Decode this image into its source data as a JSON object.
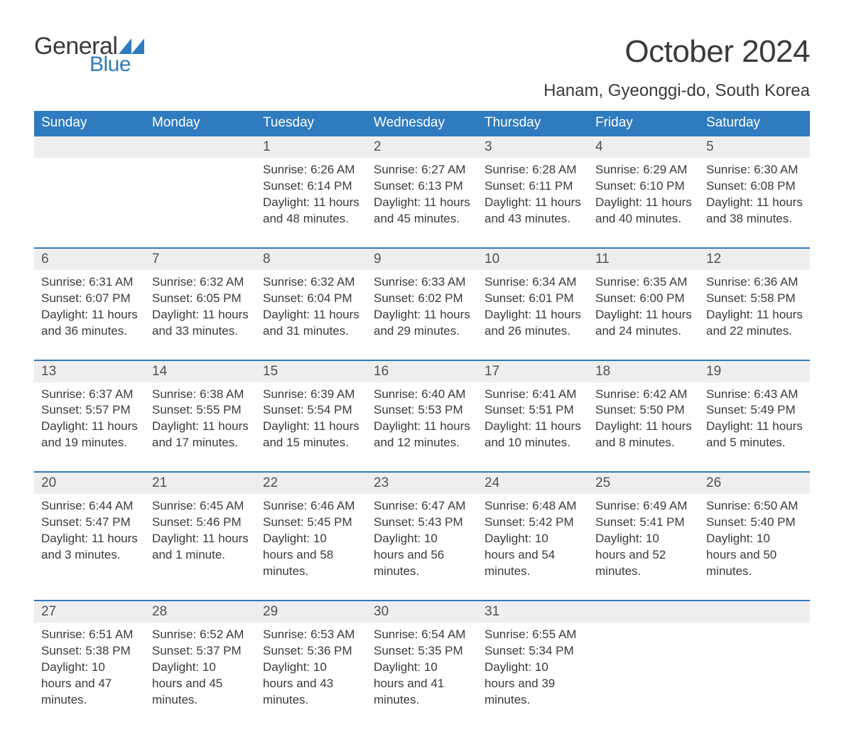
{
  "brand": {
    "word1": "General",
    "word2": "Blue",
    "text_color": "#3a3a3a",
    "accent_color": "#2f7bbf"
  },
  "title": "October 2024",
  "location": "Hanam, Gyeonggi-do, South Korea",
  "colors": {
    "header_bg": "#2f7bbf",
    "header_text": "#ffffff",
    "band_bg": "#eeeeee",
    "rule": "#2f7bbf",
    "body_text": "#3a3a3a",
    "page_bg": "#ffffff"
  },
  "typography": {
    "title_fontsize": 44,
    "location_fontsize": 24,
    "weekday_fontsize": 19,
    "daynum_fontsize": 19,
    "body_fontsize": 17
  },
  "calendar": {
    "type": "table",
    "columns": [
      "Sunday",
      "Monday",
      "Tuesday",
      "Wednesday",
      "Thursday",
      "Friday",
      "Saturday"
    ],
    "weeks": [
      [
        null,
        null,
        {
          "n": "1",
          "sunrise": "Sunrise: 6:26 AM",
          "sunset": "Sunset: 6:14 PM",
          "daylight": "Daylight: 11 hours and 48 minutes."
        },
        {
          "n": "2",
          "sunrise": "Sunrise: 6:27 AM",
          "sunset": "Sunset: 6:13 PM",
          "daylight": "Daylight: 11 hours and 45 minutes."
        },
        {
          "n": "3",
          "sunrise": "Sunrise: 6:28 AM",
          "sunset": "Sunset: 6:11 PM",
          "daylight": "Daylight: 11 hours and 43 minutes."
        },
        {
          "n": "4",
          "sunrise": "Sunrise: 6:29 AM",
          "sunset": "Sunset: 6:10 PM",
          "daylight": "Daylight: 11 hours and 40 minutes."
        },
        {
          "n": "5",
          "sunrise": "Sunrise: 6:30 AM",
          "sunset": "Sunset: 6:08 PM",
          "daylight": "Daylight: 11 hours and 38 minutes."
        }
      ],
      [
        {
          "n": "6",
          "sunrise": "Sunrise: 6:31 AM",
          "sunset": "Sunset: 6:07 PM",
          "daylight": "Daylight: 11 hours and 36 minutes."
        },
        {
          "n": "7",
          "sunrise": "Sunrise: 6:32 AM",
          "sunset": "Sunset: 6:05 PM",
          "daylight": "Daylight: 11 hours and 33 minutes."
        },
        {
          "n": "8",
          "sunrise": "Sunrise: 6:32 AM",
          "sunset": "Sunset: 6:04 PM",
          "daylight": "Daylight: 11 hours and 31 minutes."
        },
        {
          "n": "9",
          "sunrise": "Sunrise: 6:33 AM",
          "sunset": "Sunset: 6:02 PM",
          "daylight": "Daylight: 11 hours and 29 minutes."
        },
        {
          "n": "10",
          "sunrise": "Sunrise: 6:34 AM",
          "sunset": "Sunset: 6:01 PM",
          "daylight": "Daylight: 11 hours and 26 minutes."
        },
        {
          "n": "11",
          "sunrise": "Sunrise: 6:35 AM",
          "sunset": "Sunset: 6:00 PM",
          "daylight": "Daylight: 11 hours and 24 minutes."
        },
        {
          "n": "12",
          "sunrise": "Sunrise: 6:36 AM",
          "sunset": "Sunset: 5:58 PM",
          "daylight": "Daylight: 11 hours and 22 minutes."
        }
      ],
      [
        {
          "n": "13",
          "sunrise": "Sunrise: 6:37 AM",
          "sunset": "Sunset: 5:57 PM",
          "daylight": "Daylight: 11 hours and 19 minutes."
        },
        {
          "n": "14",
          "sunrise": "Sunrise: 6:38 AM",
          "sunset": "Sunset: 5:55 PM",
          "daylight": "Daylight: 11 hours and 17 minutes."
        },
        {
          "n": "15",
          "sunrise": "Sunrise: 6:39 AM",
          "sunset": "Sunset: 5:54 PM",
          "daylight": "Daylight: 11 hours and 15 minutes."
        },
        {
          "n": "16",
          "sunrise": "Sunrise: 6:40 AM",
          "sunset": "Sunset: 5:53 PM",
          "daylight": "Daylight: 11 hours and 12 minutes."
        },
        {
          "n": "17",
          "sunrise": "Sunrise: 6:41 AM",
          "sunset": "Sunset: 5:51 PM",
          "daylight": "Daylight: 11 hours and 10 minutes."
        },
        {
          "n": "18",
          "sunrise": "Sunrise: 6:42 AM",
          "sunset": "Sunset: 5:50 PM",
          "daylight": "Daylight: 11 hours and 8 minutes."
        },
        {
          "n": "19",
          "sunrise": "Sunrise: 6:43 AM",
          "sunset": "Sunset: 5:49 PM",
          "daylight": "Daylight: 11 hours and 5 minutes."
        }
      ],
      [
        {
          "n": "20",
          "sunrise": "Sunrise: 6:44 AM",
          "sunset": "Sunset: 5:47 PM",
          "daylight": "Daylight: 11 hours and 3 minutes."
        },
        {
          "n": "21",
          "sunrise": "Sunrise: 6:45 AM",
          "sunset": "Sunset: 5:46 PM",
          "daylight": "Daylight: 11 hours and 1 minute."
        },
        {
          "n": "22",
          "sunrise": "Sunrise: 6:46 AM",
          "sunset": "Sunset: 5:45 PM",
          "daylight": "Daylight: 10 hours and 58 minutes."
        },
        {
          "n": "23",
          "sunrise": "Sunrise: 6:47 AM",
          "sunset": "Sunset: 5:43 PM",
          "daylight": "Daylight: 10 hours and 56 minutes."
        },
        {
          "n": "24",
          "sunrise": "Sunrise: 6:48 AM",
          "sunset": "Sunset: 5:42 PM",
          "daylight": "Daylight: 10 hours and 54 minutes."
        },
        {
          "n": "25",
          "sunrise": "Sunrise: 6:49 AM",
          "sunset": "Sunset: 5:41 PM",
          "daylight": "Daylight: 10 hours and 52 minutes."
        },
        {
          "n": "26",
          "sunrise": "Sunrise: 6:50 AM",
          "sunset": "Sunset: 5:40 PM",
          "daylight": "Daylight: 10 hours and 50 minutes."
        }
      ],
      [
        {
          "n": "27",
          "sunrise": "Sunrise: 6:51 AM",
          "sunset": "Sunset: 5:38 PM",
          "daylight": "Daylight: 10 hours and 47 minutes."
        },
        {
          "n": "28",
          "sunrise": "Sunrise: 6:52 AM",
          "sunset": "Sunset: 5:37 PM",
          "daylight": "Daylight: 10 hours and 45 minutes."
        },
        {
          "n": "29",
          "sunrise": "Sunrise: 6:53 AM",
          "sunset": "Sunset: 5:36 PM",
          "daylight": "Daylight: 10 hours and 43 minutes."
        },
        {
          "n": "30",
          "sunrise": "Sunrise: 6:54 AM",
          "sunset": "Sunset: 5:35 PM",
          "daylight": "Daylight: 10 hours and 41 minutes."
        },
        {
          "n": "31",
          "sunrise": "Sunrise: 6:55 AM",
          "sunset": "Sunset: 5:34 PM",
          "daylight": "Daylight: 10 hours and 39 minutes."
        },
        null,
        null
      ]
    ]
  }
}
